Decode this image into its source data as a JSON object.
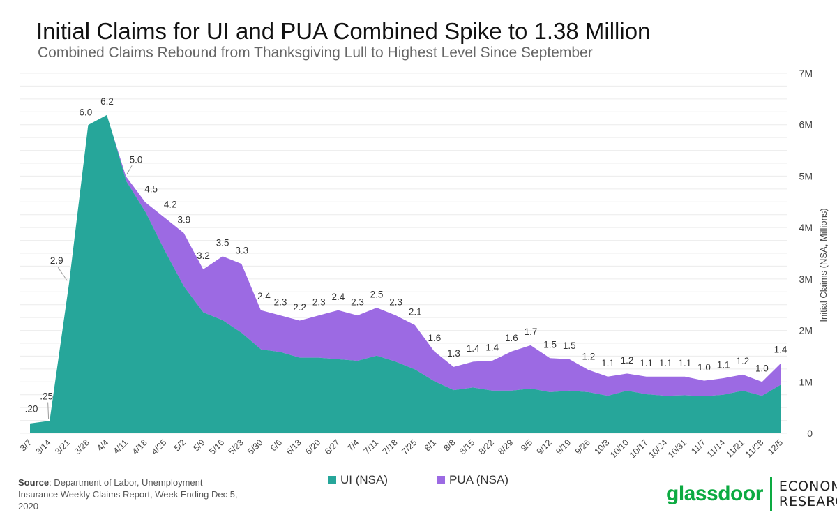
{
  "header": {
    "title": "Initial Claims for UI and PUA Combined Spike to 1.38 Million",
    "subtitle": "Combined Claims Rebound from Thanksgiving Lull to Highest Level Since September"
  },
  "source": {
    "label": "Source",
    "text": ": Department of Labor, Unemployment Insurance Weekly Claims Report, Week Ending Dec 5, 2020"
  },
  "brand": {
    "name": "glassdoor",
    "line1": "ECONOMIC",
    "line2": "RESEARCH",
    "color": "#0caa41"
  },
  "colors": {
    "ui": "#26a69a",
    "pua": "#9c6ae3"
  },
  "chart_data": {
    "type": "area",
    "stacked": true,
    "ylabel": "Initial Claims (NSA, Millions)",
    "ylim": [
      0,
      7000000
    ],
    "yticks": [
      0,
      1000000,
      2000000,
      3000000,
      4000000,
      5000000,
      6000000,
      7000000
    ],
    "ytick_labels": [
      "0",
      "1M",
      "2M",
      "3M",
      "4M",
      "5M",
      "6M",
      "7M"
    ],
    "y_axis_side": "right",
    "grid": true,
    "legend_position": "bottom-center",
    "x": [
      "3/7",
      "3/14",
      "3/21",
      "3/28",
      "4/4",
      "4/11",
      "4/18",
      "4/25",
      "5/2",
      "5/9",
      "5/16",
      "5/23",
      "5/30",
      "6/6",
      "6/13",
      "6/20",
      "6/27",
      "7/4",
      "7/11",
      "7/18",
      "7/25",
      "8/1",
      "8/8",
      "8/15",
      "8/22",
      "8/29",
      "9/5",
      "9/12",
      "9/19",
      "9/26",
      "10/3",
      "10/10",
      "10/17",
      "10/24",
      "10/31",
      "11/7",
      "11/14",
      "11/21",
      "11/28",
      "12/5"
    ],
    "series": [
      {
        "name": "UI (NSA)",
        "color": "#26a69a",
        "values": [
          200000,
          250000,
          2900000,
          6000000,
          6200000,
          4900000,
          4300000,
          3550000,
          2850000,
          2350000,
          2200000,
          1950000,
          1630000,
          1580000,
          1470000,
          1470000,
          1440000,
          1410000,
          1510000,
          1390000,
          1240000,
          1010000,
          840000,
          890000,
          830000,
          830000,
          870000,
          800000,
          830000,
          800000,
          730000,
          830000,
          760000,
          730000,
          740000,
          720000,
          750000,
          830000,
          730000,
          950000
        ]
      },
      {
        "name": "PUA (NSA)",
        "color": "#9c6ae3",
        "values": [
          0,
          0,
          0,
          0,
          0,
          100000,
          200000,
          650000,
          1050000,
          850000,
          1250000,
          1350000,
          770000,
          720000,
          730000,
          830000,
          960000,
          890000,
          940000,
          910000,
          870000,
          590000,
          460000,
          510000,
          590000,
          770000,
          850000,
          670000,
          620000,
          440000,
          380000,
          340000,
          350000,
          380000,
          370000,
          310000,
          330000,
          320000,
          280000,
          430000
        ]
      }
    ],
    "data_labels": [
      ".20",
      ".25",
      "2.9",
      "6.0",
      "6.2",
      "5.0",
      "4.5",
      "4.2",
      "3.9",
      "3.2",
      "3.5",
      "3.3",
      "2.4",
      "2.3",
      "2.2",
      "2.3",
      "2.4",
      "2.3",
      "2.5",
      "2.3",
      "2.1",
      "1.6",
      "1.3",
      "1.4",
      "1.4",
      "1.6",
      "1.7",
      "1.5",
      "1.5",
      "1.2",
      "1.1",
      "1.2",
      "1.1",
      "1.1",
      "1.1",
      "1.0",
      "1.1",
      "1.2",
      "1.0",
      "1.4"
    ]
  }
}
